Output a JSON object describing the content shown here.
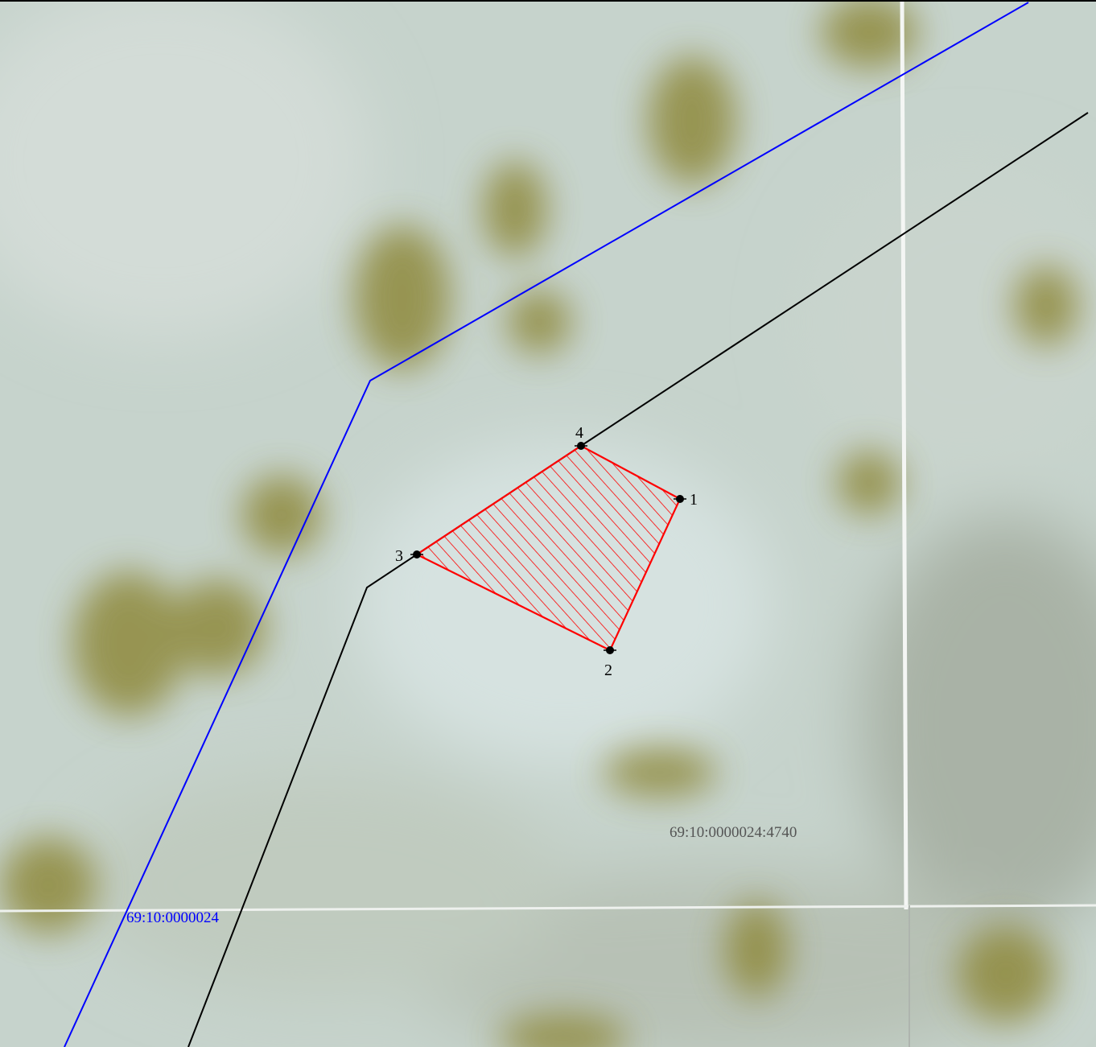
{
  "map": {
    "cadastral_quarter_label": "69:10:0000024",
    "parcel_number_label": "69:10:0000024:4740",
    "points": [
      {
        "id": "1",
        "label": "1"
      },
      {
        "id": "2",
        "label": "2"
      },
      {
        "id": "3",
        "label": "3"
      },
      {
        "id": "4",
        "label": "4"
      }
    ],
    "colors": {
      "quarter_boundary": "#0000ff",
      "parcel_boundary": "#000000",
      "new_parcel_outline": "#ff0000",
      "parcel_number_text": "#555555",
      "quarter_text": "#0000ff",
      "imagery_base": "#c5d2cb",
      "vegetation": "#8a8a3a"
    }
  }
}
